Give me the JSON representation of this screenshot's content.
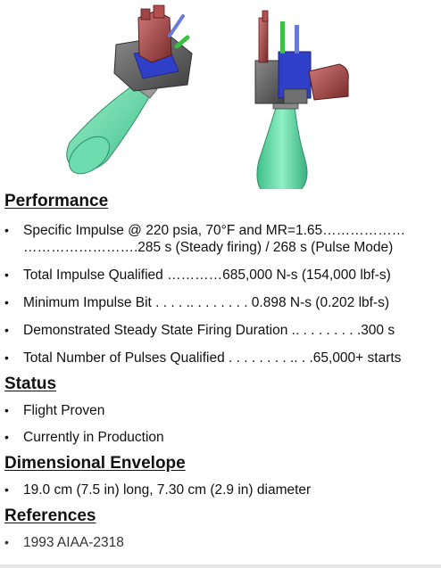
{
  "sections": {
    "performance": {
      "heading": "Performance",
      "items": [
        {
          "line1": "Specific Impulse @ 220 psia, 70°F and MR=1.65………………",
          "line2": "…………………….285 s (Steady firing) / 268 s (Pulse Mode)"
        },
        {
          "line1": "Total Impulse Qualified …………685,000 N-s (154,000 lbf-s)"
        },
        {
          "line1": "Minimum Impulse Bit . . . . .. . . . . . . . 0.898 N-s (0.202 lbf-s)"
        },
        {
          "line1": "Demonstrated Steady State Firing Duration .. . . . . . . . .300 s"
        },
        {
          "line1": "Total Number of Pulses Qualified . . . . . . . . .. . .65,000+ starts"
        }
      ]
    },
    "status": {
      "heading": "Status",
      "items": [
        "Flight Proven",
        "Currently in Production"
      ]
    },
    "envelope": {
      "heading": "Dimensional Envelope",
      "items": [
        "19.0 cm (7.5 in) long, 7.30 cm (2.9 in) diameter"
      ]
    },
    "references": {
      "heading": "References",
      "items": [
        "1993 AIAA-2318"
      ]
    }
  },
  "colors": {
    "nozzle": "#5fd6a6",
    "valve_body": "#b25050",
    "manifold": "#2f3fc8",
    "housing": "#5a5a5a"
  }
}
